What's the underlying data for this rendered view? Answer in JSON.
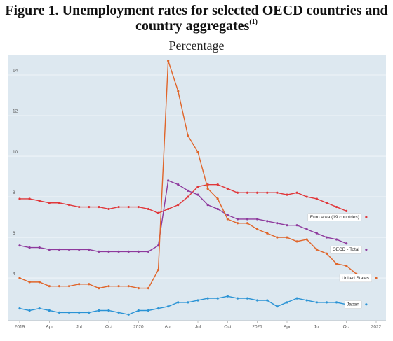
{
  "chart_data": {
    "type": "line",
    "title": "Figure 1. Unemployment rates for selected OECD countries and country aggregates",
    "title_note": "(1)",
    "subtitle": "Percentage",
    "x": [
      "2019-01",
      "2019-02",
      "2019-03",
      "2019-04",
      "2019-05",
      "2019-06",
      "2019-07",
      "2019-08",
      "2019-09",
      "2019-10",
      "2019-11",
      "2019-12",
      "2020-01",
      "2020-02",
      "2020-03",
      "2020-04",
      "2020-05",
      "2020-06",
      "2020-07",
      "2020-08",
      "2020-09",
      "2020-10",
      "2020-11",
      "2020-12",
      "2021-01",
      "2021-02",
      "2021-03",
      "2021-04",
      "2021-05",
      "2021-06",
      "2021-07",
      "2021-08",
      "2021-09",
      "2021-10",
      "2021-11",
      "2021-12",
      "2022-01"
    ],
    "series": [
      {
        "name": "Euro area (19 countries)",
        "color": "#e0383b",
        "values": [
          7.9,
          7.9,
          7.8,
          7.7,
          7.7,
          7.6,
          7.5,
          7.5,
          7.5,
          7.4,
          7.5,
          7.5,
          7.5,
          7.4,
          7.2,
          7.4,
          7.6,
          8.0,
          8.5,
          8.6,
          8.6,
          8.4,
          8.2,
          8.2,
          8.2,
          8.2,
          8.2,
          8.1,
          8.2,
          8.0,
          7.9,
          7.7,
          7.5,
          7.3,
          null,
          7.0,
          null
        ]
      },
      {
        "name": "OECD - Total",
        "color": "#8e3a9d",
        "values": [
          5.6,
          5.5,
          5.5,
          5.4,
          5.4,
          5.4,
          5.4,
          5.4,
          5.3,
          5.3,
          5.3,
          5.3,
          5.3,
          5.3,
          5.6,
          8.8,
          8.6,
          8.3,
          8.1,
          7.6,
          7.4,
          7.1,
          6.9,
          6.9,
          6.9,
          6.8,
          6.7,
          6.6,
          6.6,
          6.4,
          6.2,
          6.0,
          5.9,
          5.7,
          null,
          5.4,
          null
        ]
      },
      {
        "name": "United States",
        "color": "#e0652a",
        "values": [
          4.0,
          3.8,
          3.8,
          3.6,
          3.6,
          3.6,
          3.7,
          3.7,
          3.5,
          3.6,
          3.6,
          3.6,
          3.5,
          3.5,
          4.4,
          14.7,
          13.2,
          11.0,
          10.2,
          8.4,
          7.9,
          6.9,
          6.7,
          6.7,
          6.4,
          6.2,
          6.0,
          6.0,
          5.8,
          5.9,
          5.4,
          5.2,
          4.7,
          4.6,
          4.2,
          null,
          4.0
        ]
      },
      {
        "name": "Japan",
        "color": "#2a93d5",
        "values": [
          2.5,
          2.4,
          2.5,
          2.4,
          2.3,
          2.3,
          2.3,
          2.3,
          2.4,
          2.4,
          2.3,
          2.2,
          2.4,
          2.4,
          2.5,
          2.6,
          2.8,
          2.8,
          2.9,
          3.0,
          3.0,
          3.1,
          3.0,
          3.0,
          2.9,
          2.9,
          2.6,
          2.8,
          3.0,
          2.9,
          2.8,
          2.8,
          2.8,
          2.7,
          null,
          2.7,
          null
        ]
      }
    ],
    "xticks": [
      {
        "value": "2019-01",
        "label": "2019"
      },
      {
        "value": "2019-04",
        "label": "Apr"
      },
      {
        "value": "2019-07",
        "label": "Jul"
      },
      {
        "value": "2019-10",
        "label": "Oct"
      },
      {
        "value": "2020-01",
        "label": "2020"
      },
      {
        "value": "2020-04",
        "label": "Apr"
      },
      {
        "value": "2020-07",
        "label": "Jul"
      },
      {
        "value": "2020-10",
        "label": "Oct"
      },
      {
        "value": "2021-01",
        "label": "2021"
      },
      {
        "value": "2021-04",
        "label": "Apr"
      },
      {
        "value": "2021-07",
        "label": "Jul"
      },
      {
        "value": "2021-10",
        "label": "Oct"
      },
      {
        "value": "2022-01",
        "label": "2022"
      }
    ],
    "ylim": [
      1.9,
      15
    ],
    "yticks": [
      4,
      6,
      8,
      10,
      12,
      14
    ],
    "grid": true
  }
}
